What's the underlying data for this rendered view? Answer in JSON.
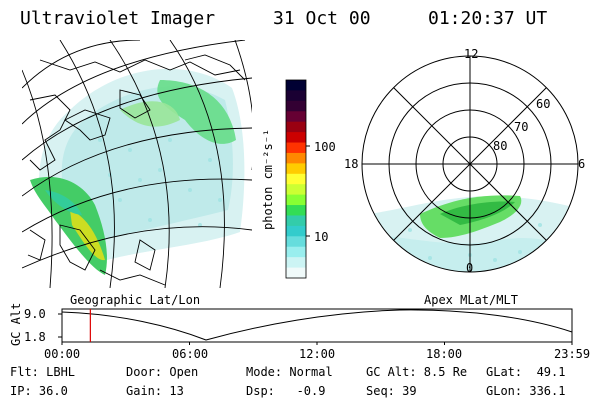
{
  "header": {
    "instrument": "Ultraviolet Imager",
    "date": "31 Oct 00",
    "time": "01:20:37 UT"
  },
  "colorbar": {
    "label": "photon cm⁻²s⁻¹",
    "ticks": [
      "100",
      "10"
    ],
    "colors": [
      "#000033",
      "#1a0033",
      "#330033",
      "#660033",
      "#990011",
      "#cc0000",
      "#ff3300",
      "#ff8800",
      "#ffcc00",
      "#ffff33",
      "#ccff33",
      "#88ff33",
      "#33dd55",
      "#33ccaa",
      "#33cccc",
      "#66dddd",
      "#99eeee",
      "#ccf4f4",
      "#f0fafa"
    ]
  },
  "polar_plot": {
    "mlt_labels": [
      "12",
      "18",
      "6",
      "0"
    ],
    "lat_labels": [
      "60",
      "70",
      "80"
    ]
  },
  "panel_labels": {
    "left": "Geographic Lat/Lon",
    "right": "Apex MLat/MLT"
  },
  "timeline": {
    "axis_label": "GC Alt",
    "y_ticks": [
      "9.0",
      "1.8"
    ],
    "x_ticks": [
      "00:00",
      "06:00",
      "12:00",
      "18:00",
      "23:59"
    ],
    "current_time_fraction": 0.0556
  },
  "footer": {
    "flt": "Flt: LBHL",
    "ip": "IP: 36.0",
    "door": "Door: Open",
    "gain": "Gain: 13",
    "mode": "Mode: Normal",
    "dsp": "Dsp:   -0.9",
    "gcalt": "GC Alt: 8.5 Re",
    "seq": "Seq: 39",
    "glat": "GLat:  49.1",
    "glon": "GLon: 336.1"
  }
}
